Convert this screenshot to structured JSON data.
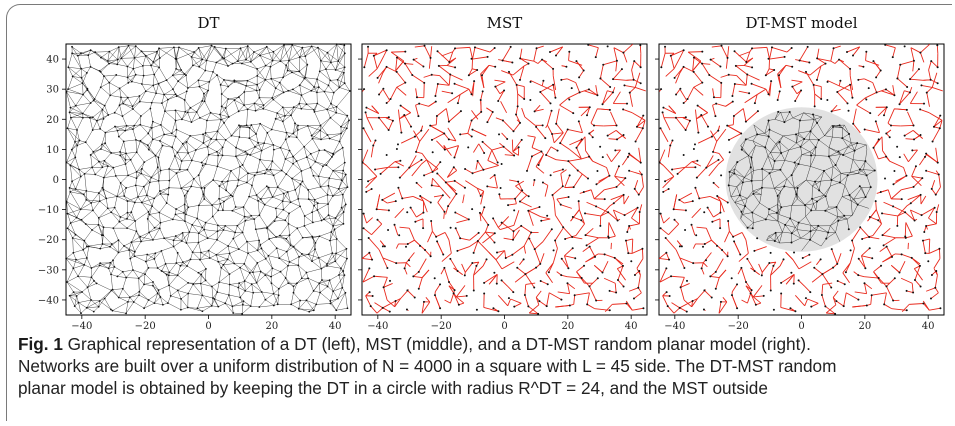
{
  "figure": {
    "panels": [
      {
        "title": "DT",
        "kind": "dt"
      },
      {
        "title": "MST",
        "kind": "mst"
      },
      {
        "title": "DT-MST model",
        "kind": "mixed"
      }
    ],
    "x_ticks": [
      -40,
      -20,
      0,
      20,
      40
    ],
    "y_ticks": [
      40,
      30,
      20,
      10,
      0,
      -10,
      -20,
      -30,
      -40
    ],
    "x_tick_labels": [
      "−40",
      "−20",
      "0",
      "20",
      "40"
    ],
    "y_tick_labels": [
      "40",
      "30",
      "20",
      "10",
      "0",
      "−10",
      "−20",
      "−30",
      "−40"
    ],
    "colors": {
      "dt_edge": "#000000",
      "mst_edge": "#e8291c",
      "node": "#111111",
      "dt_region_fill": "#c9c9c9"
    }
  },
  "caption": {
    "label": "Fig. 1",
    "line1": "Graphical representation of a DT (left), MST (middle), and a DT-MST random planar model (right).",
    "line2": "Networks are built over a uniform distribution of N = 4000 in a square with L = 45 side. The DT-MST random",
    "line3": "planar model is obtained by keeping the DT in a circle with radius R^DT = 24, and the MST outside"
  }
}
